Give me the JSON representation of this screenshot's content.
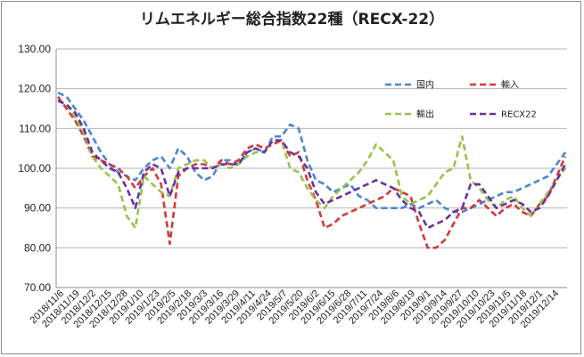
{
  "chart_data": {
    "type": "line",
    "title": "リムエネルギー総合指数22種（RECX-22）",
    "xlabel": "",
    "ylabel": "",
    "ylim": [
      70,
      130
    ],
    "y_ticks": [
      "130.00",
      "120.00",
      "110.00",
      "100.00",
      "90.00",
      "80.00",
      "70.00"
    ],
    "x_tick_labels": [
      "2018/11/6",
      "2018/11/19",
      "2018/12/2",
      "2018/12/15",
      "2018/12/28",
      "2019/1/10",
      "2019/1/23",
      "2019/2/5",
      "2019/2/18",
      "2019/3/3",
      "2019/3/16",
      "2019/3/29",
      "2019/4/11",
      "2019/4/24",
      "2019/5/7",
      "2019/5/20",
      "2019/6/2",
      "2019/6/15",
      "2019/6/28",
      "2019/7/11",
      "2019/7/24",
      "2019/8/6",
      "2019/8/19",
      "2019/9/1",
      "2019/9/14",
      "2019/9/27",
      "2019/10/10",
      "2019/10/23",
      "2019/11/5",
      "2019/11/18",
      "2019/12/1",
      "2019/12/14"
    ],
    "legend_position": "top-right",
    "grid": "horizontal",
    "series": [
      {
        "name": "国内",
        "color": "#4a86d0",
        "values": [
          119,
          118,
          115,
          112,
          108,
          104,
          101,
          99,
          98,
          97,
          100,
          102,
          103,
          100,
          105,
          103,
          99,
          97,
          98,
          102,
          102,
          101,
          104,
          105,
          104,
          108,
          108,
          111,
          110,
          102,
          97,
          96,
          94,
          95,
          96,
          93,
          92,
          90,
          90,
          90,
          90,
          91,
          90,
          91,
          92,
          90,
          89,
          89,
          90,
          91,
          92,
          93,
          94,
          94,
          95,
          96,
          97,
          98,
          101,
          104
        ]
      },
      {
        "name": "輸入",
        "color": "#d43a3a",
        "values": [
          118,
          115,
          112,
          108,
          103,
          102,
          101,
          100,
          98,
          95,
          98,
          100,
          96,
          81,
          98,
          100,
          101,
          101,
          100,
          102,
          101,
          102,
          105,
          106,
          105,
          106,
          107,
          103,
          104,
          97,
          92,
          85,
          86,
          88,
          89,
          90,
          91,
          92,
          93,
          95,
          94,
          93,
          86,
          80,
          80,
          82,
          86,
          90,
          90,
          92,
          90,
          88,
          90,
          91,
          89,
          88,
          91,
          93,
          98,
          103
        ]
      },
      {
        "name": "輸出",
        "color": "#96c44a",
        "values": [
          117,
          116,
          113,
          109,
          103,
          100,
          98,
          96,
          88,
          85,
          98,
          96,
          94,
          93,
          100,
          101,
          102,
          102,
          100,
          101,
          100,
          101,
          103,
          104,
          104,
          107,
          107,
          100,
          99,
          95,
          92,
          90,
          93,
          95,
          97,
          99,
          102,
          106,
          104,
          102,
          93,
          91,
          92,
          93,
          96,
          99,
          100,
          108,
          97,
          95,
          92,
          90,
          92,
          93,
          90,
          88,
          91,
          94,
          97,
          100
        ]
      },
      {
        "name": "RECX22",
        "color": "#6a32a0",
        "values": [
          117,
          116,
          114,
          110,
          104,
          102,
          100,
          99,
          95,
          90,
          99,
          101,
          100,
          93,
          99,
          100,
          100,
          100,
          100,
          101,
          101,
          101,
          104,
          105,
          104,
          107,
          107,
          104,
          103,
          100,
          94,
          91,
          92,
          93,
          94,
          95,
          96,
          97,
          96,
          95,
          92,
          90,
          89,
          85,
          86,
          87,
          89,
          90,
          96,
          96,
          93,
          90,
          91,
          92,
          91,
          89,
          90,
          93,
          97,
          101
        ]
      }
    ]
  }
}
